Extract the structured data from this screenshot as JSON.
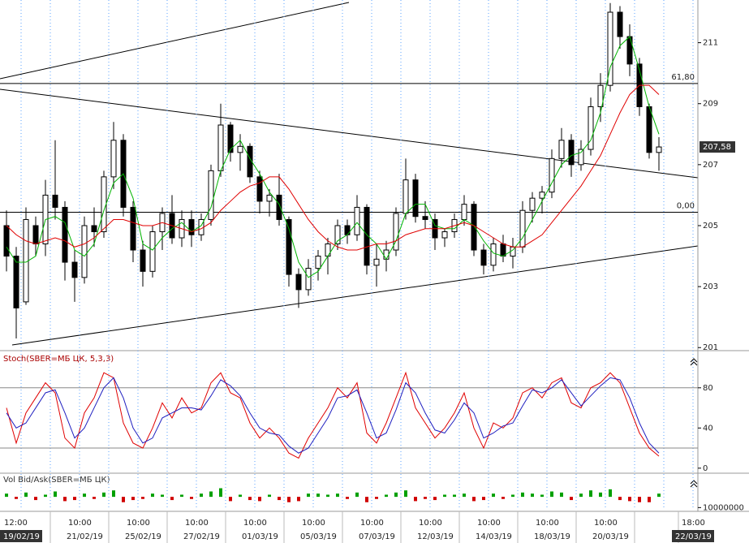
{
  "chart_data": {
    "type": "candlestick",
    "categories": [
      "12:00",
      null,
      null,
      null,
      null,
      null,
      "10:00",
      null,
      null,
      null,
      null,
      null,
      "10:00",
      null,
      null,
      null,
      null,
      null,
      "10:00",
      null,
      null,
      null,
      null,
      null,
      "10:00",
      null,
      null,
      null,
      null,
      null,
      "10:00",
      null,
      null,
      null,
      null,
      null,
      "10:00",
      null,
      null,
      null,
      null,
      null,
      "10:00",
      null,
      null,
      null,
      null,
      null,
      "10:00",
      null,
      null,
      null,
      null,
      null,
      "10:00",
      null,
      null,
      null,
      null,
      null,
      "10:00",
      null,
      null,
      null,
      null,
      null,
      null,
      null,
      null,
      "18:00"
    ],
    "dates": [
      "19/02/19",
      null,
      null,
      null,
      null,
      null,
      "21/02/19",
      null,
      null,
      null,
      null,
      null,
      "25/02/19",
      null,
      null,
      null,
      null,
      null,
      "27/02/19",
      null,
      null,
      null,
      null,
      null,
      "01/03/19",
      null,
      null,
      null,
      null,
      null,
      "05/03/19",
      null,
      null,
      null,
      null,
      null,
      "07/03/19",
      null,
      null,
      null,
      null,
      null,
      "12/03/19",
      null,
      null,
      null,
      null,
      null,
      "14/03/19",
      null,
      null,
      null,
      null,
      null,
      "18/03/19",
      null,
      null,
      null,
      null,
      null,
      "20/03/19",
      null,
      null,
      null,
      null,
      null,
      null,
      null,
      null,
      "22/03/19"
    ],
    "open": [
      205,
      204,
      202.5,
      205,
      204.4,
      206,
      205.6,
      203.8,
      203.3,
      205,
      204.8,
      206.6,
      207.8,
      205.6,
      204.2,
      203.5,
      204.8,
      205.4,
      204.6,
      205.2,
      204.7,
      205.2,
      206.8,
      208.3,
      207.4,
      207.6,
      206.6,
      205.8,
      206,
      205.2,
      203.4,
      202.9,
      203.6,
      204,
      204.4,
      205,
      204.7,
      205.6,
      203.7,
      203.9,
      204.2,
      205.4,
      206.5,
      205.3,
      205.2,
      204.6,
      204.8,
      205.2,
      205.7,
      204.2,
      203.7,
      204.4,
      204,
      204.3,
      205.5,
      205.9,
      206.1,
      207.2,
      207.8,
      207,
      207.5,
      208.9,
      209.6,
      212,
      211.2,
      210.3,
      208.9,
      207.4,
      null,
      null
    ],
    "high": [
      205.5,
      204.3,
      205.6,
      205.3,
      206.5,
      207.8,
      205.8,
      204.2,
      205.3,
      205.6,
      206.8,
      208.4,
      208,
      205.8,
      204.5,
      205,
      205.6,
      206,
      205.5,
      205.5,
      205.4,
      207,
      209,
      208.4,
      208,
      207.7,
      206.8,
      206.2,
      206.7,
      205.3,
      203.6,
      203.9,
      204.2,
      204.6,
      205.2,
      205.2,
      206,
      205.7,
      204.4,
      204.5,
      205.6,
      207.2,
      206.7,
      205.8,
      205.4,
      204.9,
      205.4,
      206,
      205.8,
      204.4,
      204.6,
      204.7,
      204.6,
      205.8,
      206.1,
      206.3,
      207.5,
      208.2,
      208,
      207.8,
      209.2,
      210,
      212.3,
      212.2,
      211.6,
      210.5,
      209,
      207.9,
      null,
      null
    ],
    "low": [
      203.5,
      201.3,
      202.4,
      204,
      204,
      205.2,
      203.2,
      202.5,
      203.1,
      204.3,
      204.6,
      206.2,
      205.3,
      203.8,
      203,
      203.3,
      204.2,
      204.4,
      204.3,
      204.3,
      204.5,
      205,
      206.6,
      207.1,
      206.8,
      206.4,
      205.4,
      205.3,
      205,
      203,
      202.3,
      202.7,
      203.2,
      203.4,
      204.2,
      204.4,
      204.5,
      203.4,
      203,
      203.5,
      204,
      205.2,
      205.1,
      204.9,
      204.2,
      204.3,
      204.6,
      205,
      204,
      203.4,
      203.5,
      203.8,
      203.6,
      204.1,
      205.1,
      205.4,
      205.9,
      206.9,
      206.6,
      206.8,
      207.3,
      208.4,
      209.4,
      210.8,
      209.9,
      208.6,
      207.2,
      206.8,
      null,
      null
    ],
    "close": [
      204,
      202.3,
      205.2,
      204.4,
      206,
      205.6,
      203.8,
      203.3,
      205,
      204.8,
      206.6,
      207.8,
      205.6,
      204.2,
      203.5,
      204.8,
      205.4,
      204.6,
      205.2,
      204.7,
      205.2,
      206.8,
      208.3,
      207.4,
      207.6,
      206.6,
      205.8,
      206,
      205.2,
      203.4,
      202.9,
      203.6,
      204,
      204.4,
      205,
      204.7,
      205.6,
      203.7,
      203.9,
      204.2,
      205.4,
      206.5,
      205.3,
      205.2,
      204.6,
      204.8,
      205.2,
      205.7,
      204.2,
      203.7,
      204.4,
      204,
      204.3,
      205.5,
      205.9,
      206.1,
      207.2,
      207.8,
      207,
      207.5,
      208.9,
      209.6,
      212,
      211.2,
      210.3,
      208.9,
      207.4,
      207.58,
      null,
      null
    ],
    "ylim": [
      200.9,
      212.4
    ],
    "yticks": [
      201,
      203,
      205,
      207,
      209,
      211
    ],
    "grid": true,
    "last_price": {
      "value": 207.58,
      "label": "207,58"
    },
    "levels": [
      {
        "value": 209.66,
        "label": "61,80"
      },
      {
        "value": 205.44,
        "label": "0,00"
      }
    ],
    "series": [
      {
        "color": "#00b400",
        "values": [
          204.3,
          203.8,
          203.8,
          204,
          205.2,
          205.3,
          205.1,
          204.2,
          204,
          204.4,
          205.5,
          206.4,
          206.7,
          205.9,
          204.4,
          204.2,
          204.6,
          204.9,
          205.1,
          204.8,
          205,
          205.6,
          206.8,
          207.5,
          207.8,
          207.2,
          206.7,
          206.1,
          205.7,
          204.9,
          203.8,
          203.3,
          203.5,
          204,
          204.5,
          204.7,
          205.1,
          204.7,
          204.4,
          203.9,
          204.5,
          205.4,
          205.7,
          205.7,
          205,
          204.9,
          204.9,
          205.2,
          205,
          204.5,
          204.1,
          204,
          204.2,
          204.6,
          205.2,
          205.8,
          206.4,
          207,
          207.3,
          207.4,
          207.8,
          208.7,
          210.2,
          210.9,
          211.2,
          210.1,
          208.9,
          208,
          null,
          null
        ]
      },
      {
        "color": "#e00000",
        "values": [
          205,
          204.7,
          204.5,
          204.4,
          204.5,
          204.6,
          204.5,
          204.3,
          204.4,
          204.6,
          204.9,
          205.2,
          205.2,
          205.1,
          205,
          205,
          205.1,
          205,
          204.9,
          204.8,
          204.9,
          205.1,
          205.5,
          205.8,
          206.1,
          206.3,
          206.4,
          206.6,
          206.6,
          206.2,
          205.7,
          205.2,
          204.8,
          204.5,
          204.3,
          204.2,
          204.2,
          204.3,
          204.4,
          204.4,
          204.5,
          204.7,
          204.8,
          204.9,
          204.9,
          204.9,
          205,
          205.1,
          205,
          204.8,
          204.6,
          204.4,
          204.3,
          204.3,
          204.5,
          204.7,
          205.1,
          205.5,
          205.9,
          206.3,
          206.8,
          207.3,
          208,
          208.7,
          209.3,
          209.6,
          209.6,
          209.3,
          null,
          null
        ]
      }
    ],
    "stochastic": {
      "title": "Stoch(SBER=МБ ЦК, 5,3,3)",
      "ylim": [
        -5,
        117
      ],
      "yticks": [
        0,
        40,
        80
      ],
      "levels": [
        80,
        20
      ],
      "series": [
        {
          "color": "#e00000",
          "values": [
            60,
            25,
            55,
            70,
            85,
            75,
            30,
            20,
            55,
            70,
            95,
            90,
            45,
            25,
            20,
            40,
            65,
            50,
            70,
            55,
            60,
            85,
            95,
            75,
            70,
            45,
            30,
            40,
            30,
            15,
            10,
            30,
            45,
            60,
            80,
            70,
            85,
            35,
            25,
            45,
            70,
            95,
            60,
            45,
            30,
            40,
            55,
            75,
            40,
            20,
            45,
            40,
            50,
            75,
            80,
            70,
            85,
            90,
            65,
            60,
            80,
            85,
            95,
            85,
            60,
            35,
            20,
            12,
            null,
            null
          ]
        },
        {
          "color": "#2020c0",
          "values": [
            55,
            40,
            45,
            60,
            75,
            78,
            55,
            30,
            40,
            60,
            80,
            90,
            70,
            40,
            25,
            30,
            50,
            55,
            60,
            60,
            58,
            72,
            88,
            82,
            72,
            55,
            40,
            35,
            33,
            22,
            15,
            20,
            35,
            50,
            70,
            72,
            78,
            55,
            30,
            35,
            58,
            85,
            75,
            55,
            38,
            35,
            48,
            65,
            55,
            30,
            35,
            42,
            45,
            62,
            78,
            75,
            80,
            88,
            75,
            62,
            72,
            82,
            90,
            88,
            70,
            45,
            25,
            15,
            null,
            null
          ]
        }
      ]
    },
    "volume": {
      "title": "Vol Bid/Ask(SBER=МБ ЦК)",
      "ylim": [
        12000000,
        -22000000
      ],
      "yticks": [
        10000000
      ],
      "values": [
        -3000000,
        2000000,
        -4000000,
        3000000,
        -2000000,
        -5000000,
        4000000,
        3000000,
        -3000000,
        2000000,
        -4000000,
        -6000000,
        5000000,
        3000000,
        2000000,
        -3000000,
        -2000000,
        3000000,
        -2000000,
        2000000,
        -3000000,
        -5000000,
        -8000000,
        4000000,
        -2000000,
        3000000,
        4000000,
        -2000000,
        3000000,
        5000000,
        4000000,
        -3000000,
        -3000000,
        -2000000,
        -3000000,
        2000000,
        -4000000,
        5000000,
        2000000,
        -2000000,
        -4000000,
        -6000000,
        4000000,
        2000000,
        3000000,
        -2000000,
        -2000000,
        -3000000,
        4000000,
        3000000,
        -3000000,
        2000000,
        -2000000,
        -4000000,
        -3000000,
        -2000000,
        -5000000,
        -4000000,
        3000000,
        -3000000,
        -6000000,
        -4000000,
        -7000000,
        3000000,
        4000000,
        5000000,
        5000000,
        -3000000,
        null,
        null
      ]
    }
  }
}
